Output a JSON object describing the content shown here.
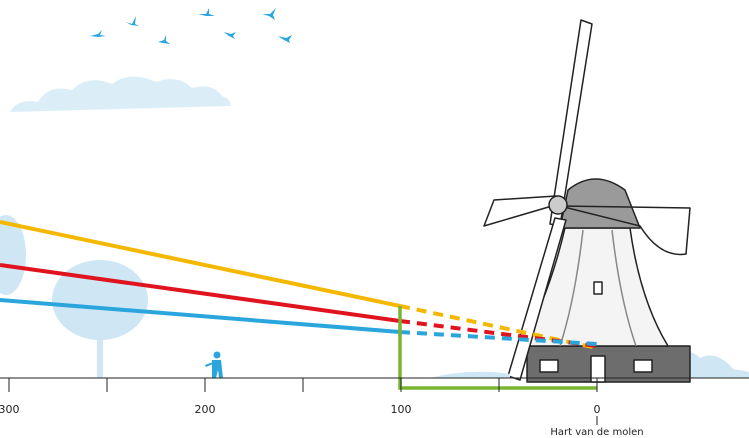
{
  "axis": {
    "ticks": [
      300,
      200,
      100,
      0
    ],
    "caption": "Hart van de molen"
  }
}
